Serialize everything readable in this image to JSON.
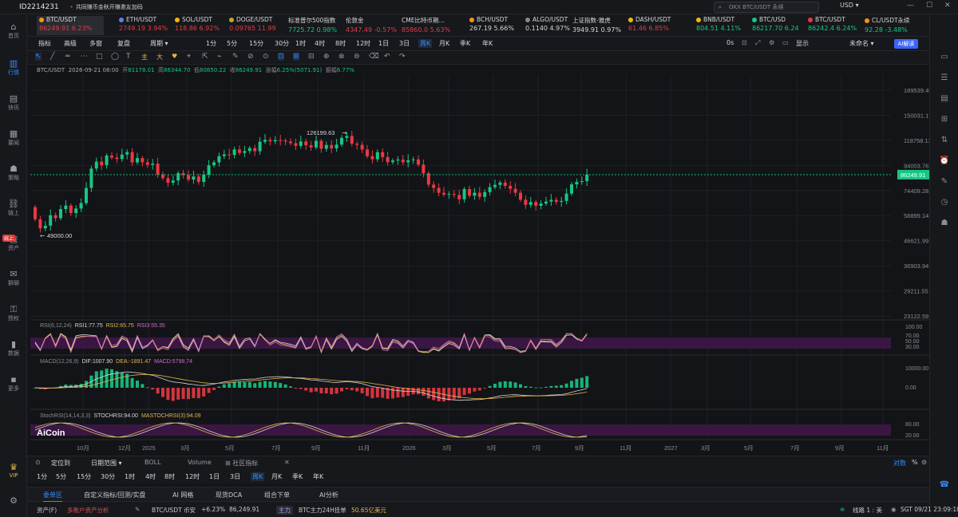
{
  "app": {
    "account_id": "ID2214231",
    "promo": "共同赚币金秋开赚邀友加码",
    "search_placeholder": "OKX BTC/USDT 永续",
    "currency": "USD",
    "window_controls": [
      "—",
      "☐",
      "✕"
    ]
  },
  "sidebar": [
    {
      "label": "首页",
      "icon": "home-icon",
      "glyph": "⌂"
    },
    {
      "label": "行情",
      "icon": "chart-icon",
      "glyph": "▥"
    },
    {
      "label": "快讯",
      "icon": "news-icon",
      "glyph": "▤"
    },
    {
      "label": "要闻",
      "icon": "headline-icon",
      "glyph": "▦"
    },
    {
      "label": "策略",
      "icon": "robot-icon",
      "glyph": "☗"
    },
    {
      "label": "链上",
      "icon": "chain-icon",
      "glyph": "⛓"
    },
    {
      "label": "资产",
      "icon": "wallet-icon",
      "glyph": "▣"
    },
    {
      "label": "群聊",
      "icon": "chat-icon",
      "glyph": "✉"
    },
    {
      "label": "授权",
      "icon": "key-icon",
      "glyph": "⚿"
    },
    {
      "label": "数据",
      "icon": "data-icon",
      "glyph": "▮"
    },
    {
      "label": "更多",
      "icon": "more-icon",
      "glyph": "▪"
    }
  ],
  "sidebar_badge": "线上",
  "sidebar_bottom": {
    "vip": "VIP",
    "settings_icon": "gear-icon"
  },
  "tickers": [
    {
      "name": "BTC/USDT",
      "price": "86249.91",
      "change": "6.23%",
      "dir": "dn",
      "dot": "#f7931a"
    },
    {
      "name": "ETH/USDT",
      "price": "2749.19",
      "change": "3.94%",
      "dir": "dn",
      "dot": "#627eea"
    },
    {
      "name": "SOL/USDT",
      "price": "118.86",
      "change": "6.92%",
      "dir": "dn",
      "dot": "#f0b90b"
    },
    {
      "name": "DOGE/USDT",
      "price": "0.09765",
      "change": "11.99",
      "dir": "dn",
      "dot": "#c2a633"
    },
    {
      "name": "标准普尔500指数",
      "price": "7725.72",
      "change": "0.98%",
      "dir": "up",
      "dot": ""
    },
    {
      "name": "伦敦金",
      "price": "4347.49",
      "change": "-0.57%",
      "dir": "dn",
      "dot": ""
    },
    {
      "name": "CME比特币期…",
      "price": "85860.0",
      "change": "5.63%",
      "dir": "dn",
      "dot": ""
    },
    {
      "name": "BCH/USDT",
      "price": "267.19",
      "change": "5.66%",
      "dir": "wt",
      "dot": "#f7931a"
    },
    {
      "name": "ALGO/USDT",
      "price": "0.1140",
      "change": "4.97%",
      "dir": "wt",
      "dot": "#888888"
    },
    {
      "name": "上证指数-雅虎",
      "price": "3949.91",
      "change": "0.97%",
      "dir": "wt",
      "dot": ""
    },
    {
      "name": "DASH/USDT",
      "price": "61.46",
      "change": "6.85%",
      "dir": "dn",
      "dot": "#f0b90b"
    },
    {
      "name": "BNB/USDT",
      "price": "804.51",
      "change": "4.11%",
      "dir": "up",
      "dot": "#f0b90b"
    },
    {
      "name": "BTC/USD",
      "price": "86217.70",
      "change": "6.24",
      "dir": "up",
      "dot": "#16c784"
    },
    {
      "name": "BTC/USDT",
      "price": "86242.4",
      "change": "6.24%",
      "dir": "up",
      "dot": "#ea3943"
    },
    {
      "name": "CL/USDT永续",
      "price": "92.28",
      "change": "-3.48%",
      "dir": "up",
      "dot": "#f7931a"
    }
  ],
  "toolbar1": {
    "indicator": "指标",
    "advanced": "高级",
    "multi_window": "多窗",
    "replay": "复盘",
    "period_label": "周期",
    "periods": [
      "1分",
      "5分",
      "15分",
      "30分",
      "1时",
      "4时",
      "8时",
      "12时",
      "1日",
      "3日",
      "周K",
      "月K",
      "季K",
      "年K"
    ],
    "active_period": "周K",
    "countdown": "0s",
    "display": "显示",
    "unnamed": "未命名",
    "ai_btn": "AI解读"
  },
  "toolbar2": {
    "tools": [
      "↖",
      "╱",
      "═",
      "⋯",
      "□",
      "◯",
      "T",
      "主",
      "大",
      "♥",
      "⌖",
      "⇱",
      "⌁",
      "✎",
      "⊘",
      "⊙",
      "⊡",
      "⊞",
      "⊟",
      "⊕",
      "⊗",
      "⊜",
      "⌫",
      "↶",
      "↷"
    ]
  },
  "chart_header": {
    "symbol": "BTC/USDT",
    "datetime": "2026-09-21 08:00",
    "open_label": "开",
    "open": "81178.01",
    "high_label": "高",
    "high": "86344.70",
    "low_label": "低",
    "low": "80850.22",
    "close_label": "收",
    "close": "86249.91",
    "chg_label": "涨幅",
    "chg": "6.25%(5071.91)",
    "amp_label": "振幅",
    "amp": "6.77%"
  },
  "chart_data": {
    "type": "candlestick",
    "price_ticks": [
      "189539.45",
      "150031.17",
      "118758.13",
      "94003.76",
      "74409.28",
      "58899.14",
      "46621.99",
      "36903.94",
      "29211.55",
      "23122.59"
    ],
    "current_price": "86249.91",
    "marker_high": "126199.63",
    "marker_low": "49000.00",
    "x_ticks": [
      "10月",
      "12月",
      "2025",
      "3月",
      "5月",
      "7月",
      "9月",
      "11月",
      "2026",
      "3月",
      "5月",
      "7月",
      "9月",
      "11月",
      "2027",
      "3月",
      "5月",
      "7月",
      "9月",
      "11月"
    ],
    "closes": [
      56900,
      52300,
      53600,
      59100,
      57500,
      62600,
      64700,
      60300,
      62900,
      66200,
      76200,
      91300,
      97400,
      94200,
      103100,
      101100,
      99800,
      104000,
      106400,
      96700,
      100700,
      96800,
      94500,
      95600,
      86500,
      83500,
      80000,
      81700,
      87500,
      85900,
      82400,
      84800,
      80600,
      86300,
      94200,
      96700,
      102500,
      104200,
      103700,
      109100,
      105600,
      107500,
      110500,
      107300,
      117200,
      119300,
      117700,
      119100,
      118500,
      117400,
      115600,
      112800,
      117500,
      113500,
      111200,
      118200,
      109800,
      113700,
      110200,
      114100,
      121500,
      123700,
      115100,
      113900,
      109000,
      102400,
      99600,
      106300,
      101600,
      96900,
      98400,
      99300,
      96800,
      98600,
      99400,
      94700,
      87400,
      78600,
      76200,
      72800,
      71600,
      72000,
      71400,
      68600,
      75400,
      70900,
      72900,
      70100,
      73300,
      76800,
      78400,
      80100,
      77700,
      75600,
      72900,
      68300,
      65100,
      66800,
      64500,
      65900,
      67100,
      68200,
      66900,
      67500,
      72300,
      78800,
      80600,
      81200,
      86249
    ],
    "rsi": {
      "label": "RSI(6,12,24)",
      "rsi1": "RSI1:77.75",
      "rsi2": "RSI2:65.75",
      "rsi3": "RSI3:55.35",
      "ticks": [
        "100.00",
        "70.00",
        "50.00",
        "30.00"
      ]
    },
    "macd": {
      "label": "MACD(12,26,9)",
      "dif": "DIF:1007.90",
      "dea": "DEA:-1891.47",
      "macd": "MACD:5798.74",
      "ticks": [
        "10000.00",
        "0.00"
      ]
    },
    "stochrsi": {
      "label": "StochRSI(14,14,3,3)",
      "k": "STOCHRSI:94.00",
      "d": "MASTOCHRSI(3):94.09",
      "ticks": [
        "80.00",
        "20.00"
      ]
    }
  },
  "logo": "AiCoin",
  "bottom1": {
    "locate": "定位到",
    "range": "日期范围",
    "boll": "BOLL",
    "volume": "Volume",
    "community": "社区指标",
    "log": "对数",
    "pct": "%"
  },
  "bottom2": {
    "periods": [
      "1分",
      "5分",
      "15分",
      "30分",
      "1时",
      "4时",
      "8时",
      "12时",
      "1日",
      "3日",
      "周K",
      "月K",
      "季K",
      "年K"
    ],
    "active": "周K"
  },
  "bottom3": {
    "tabs": [
      "委单区",
      "自定义指标/回测/实盘",
      "AI 网格",
      "现货DCA",
      "组合下单",
      "AI分析"
    ],
    "active": "委单区"
  },
  "statusbar": {
    "assets": "资产(F)",
    "multi_assets": "多账户资产分析",
    "pair": "BTC/USDT 币安",
    "pair_chg": "+6.23%",
    "pair_price": "86,249.91",
    "main_tag": "主力",
    "main_text": "BTC主力24H挂单",
    "main_amt": "50.65亿美元",
    "line": "线路 1 : 美",
    "time": "SGT 09/21 23:09:18"
  }
}
